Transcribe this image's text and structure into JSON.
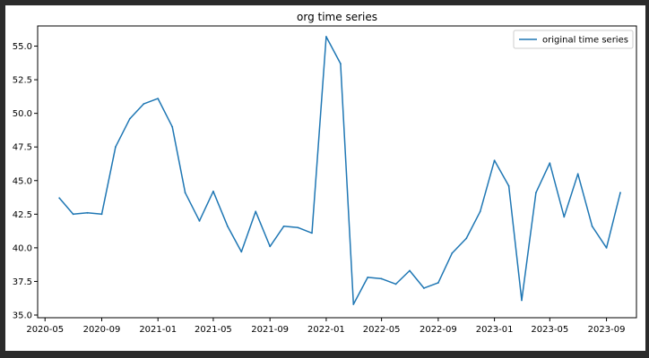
{
  "chart_data": {
    "type": "line",
    "title": "org time series",
    "xlabel": "",
    "ylabel": "",
    "legend_position": "top-right",
    "grid": false,
    "xlim": [
      "2020-04-15",
      "2023-11-05"
    ],
    "ylim": [
      34.8,
      56.5
    ],
    "x_ticks": [
      "2020-05-01",
      "2020-09-01",
      "2021-01-01",
      "2021-05-01",
      "2021-09-01",
      "2022-01-01",
      "2022-05-01",
      "2022-09-01",
      "2023-01-01",
      "2023-05-01",
      "2023-09-01"
    ],
    "x_tick_labels": [
      "2020-05",
      "2020-09",
      "2021-01",
      "2021-05",
      "2021-09",
      "2022-01",
      "2022-05",
      "2022-09",
      "2023-01",
      "2023-05",
      "2023-09"
    ],
    "y_ticks": [
      35.0,
      37.5,
      40.0,
      42.5,
      45.0,
      47.5,
      50.0,
      52.5,
      55.0
    ],
    "y_tick_labels": [
      "35.0",
      "37.5",
      "40.0",
      "42.5",
      "45.0",
      "47.5",
      "50.0",
      "52.5",
      "55.0"
    ],
    "series": [
      {
        "name": "original time series",
        "color": "#1f77b4",
        "x": [
          "2020-06-01",
          "2020-07-01",
          "2020-08-01",
          "2020-09-01",
          "2020-10-01",
          "2020-11-01",
          "2020-12-01",
          "2021-01-01",
          "2021-02-01",
          "2021-03-01",
          "2021-04-01",
          "2021-05-01",
          "2021-06-01",
          "2021-07-01",
          "2021-08-01",
          "2021-09-01",
          "2021-10-01",
          "2021-11-01",
          "2021-12-01",
          "2022-01-01",
          "2022-02-01",
          "2022-03-01",
          "2022-04-01",
          "2022-05-01",
          "2022-06-01",
          "2022-07-01",
          "2022-08-01",
          "2022-09-01",
          "2022-10-01",
          "2022-11-01",
          "2022-12-01",
          "2023-01-01",
          "2023-02-01",
          "2023-03-01",
          "2023-04-01",
          "2023-05-01",
          "2023-06-01",
          "2023-07-01",
          "2023-08-01",
          "2023-09-01",
          "2023-10-01"
        ],
        "values": [
          43.7,
          42.5,
          42.6,
          42.5,
          47.5,
          49.6,
          50.7,
          51.1,
          49.0,
          44.1,
          42.0,
          44.2,
          41.6,
          39.7,
          42.7,
          40.1,
          41.6,
          41.5,
          41.1,
          55.7,
          53.7,
          35.8,
          37.8,
          37.7,
          37.3,
          38.3,
          37.0,
          37.4,
          39.6,
          40.7,
          42.7,
          46.5,
          44.6,
          36.1,
          44.1,
          46.3,
          42.3,
          45.5,
          41.6,
          40.0,
          44.1
        ]
      }
    ]
  }
}
